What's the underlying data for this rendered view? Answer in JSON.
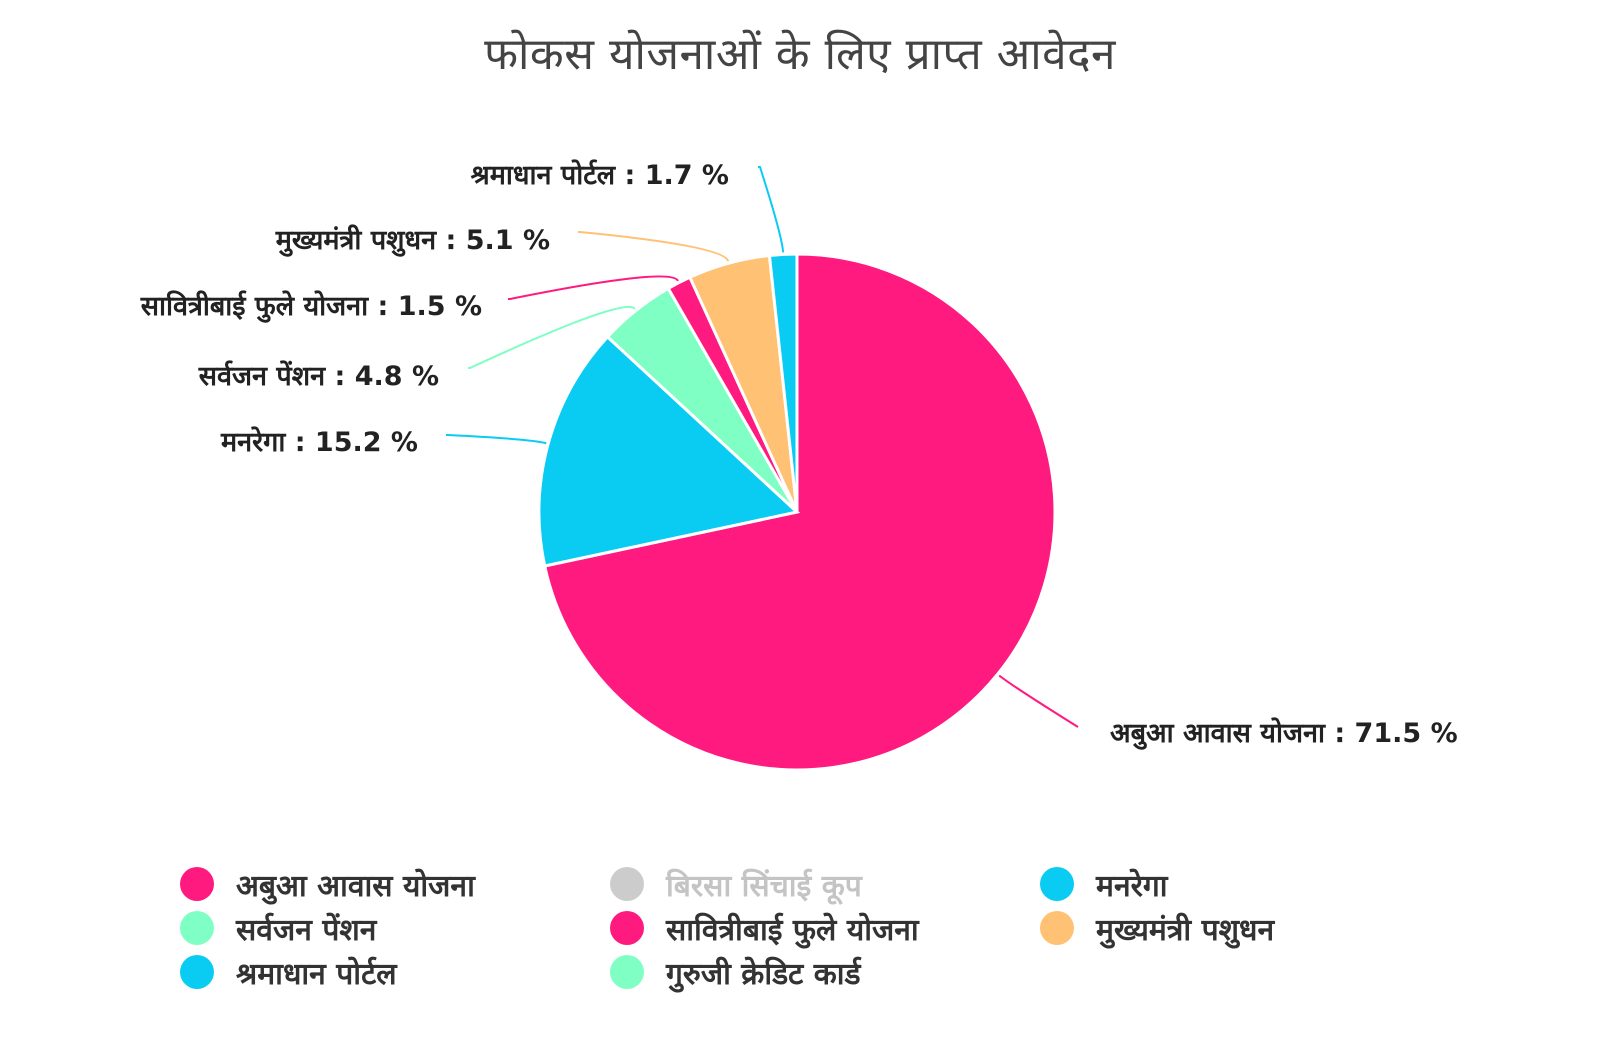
{
  "chart_data": {
    "type": "pie",
    "title": "फोकस योजनाओं के लिए प्राप्त आवेदन",
    "slices": [
      {
        "name": "अबुआ आवास योजना",
        "value": 71.5,
        "label": "अबुआ आवास योजना : 71.5 %",
        "color": "#FF1A80"
      },
      {
        "name": "मनरेगा",
        "value": 15.2,
        "label": "मनरेगा : 15.2 %",
        "color": "#0ACCF2"
      },
      {
        "name": "सर्वजन पेंशन",
        "value": 4.8,
        "label": "सर्वजन पेंशन : 4.8 %",
        "color": "#80FFC4"
      },
      {
        "name": "सावित्रीबाई फुले योजना",
        "value": 1.5,
        "label": "सावित्रीबाई फुले योजना : 1.5 %",
        "color": "#FF1A80"
      },
      {
        "name": "मुख्यमंत्री पशुधन",
        "value": 5.1,
        "label": "मुख्यमंत्री पशुधन : 5.1 %",
        "color": "#FFC173"
      },
      {
        "name": "श्रमाधान पोर्टल",
        "value": 1.7,
        "label": "श्रमाधान पोर्टल : 1.7 %",
        "color": "#0ACCF2"
      }
    ],
    "legend": {
      "placement": "bottom",
      "items": [
        {
          "label": "अबुआ आवास योजना",
          "color": "#FF1A80",
          "hidden": false
        },
        {
          "label": "बिरसा सिंचाई कूप",
          "color": "#CCCCCC",
          "hidden": true
        },
        {
          "label": "मनरेगा",
          "color": "#0ACCF2",
          "hidden": false
        },
        {
          "label": "सर्वजन पेंशन",
          "color": "#80FFC4",
          "hidden": false
        },
        {
          "label": "सावित्रीबाई फुले योजना",
          "color": "#FF1A80",
          "hidden": false
        },
        {
          "label": "मुख्यमंत्री पशुधन",
          "color": "#FFC173",
          "hidden": false
        },
        {
          "label": "श्रमाधान पोर्टल",
          "color": "#0ACCF2",
          "hidden": false
        },
        {
          "label": "गुरुजी क्रेडिट कार्ड",
          "color": "#80FFC4",
          "hidden": false
        }
      ]
    }
  }
}
